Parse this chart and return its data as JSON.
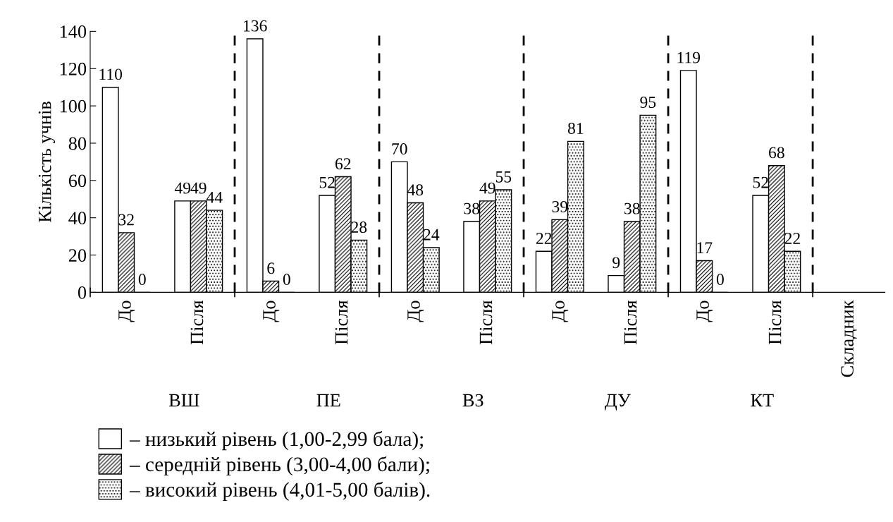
{
  "chart_data": {
    "type": "bar",
    "ylabel": "Кількість учнів",
    "categories": [
      "До",
      "Після",
      "До",
      "Після",
      "До",
      "Після",
      "До",
      "Після",
      "До",
      "Після",
      "Складник"
    ],
    "series": [
      {
        "name": "– низький рівень (1,00-2,99 бала);",
        "color": "#ffffff",
        "values": [
          110,
          49,
          136,
          52,
          70,
          38,
          22,
          9,
          119,
          52,
          null
        ]
      },
      {
        "name": "– середній рівень (3,00-4,00 бали);",
        "color": "#000000",
        "values": [
          32,
          49,
          6,
          62,
          48,
          49,
          39,
          38,
          17,
          68,
          null
        ]
      },
      {
        "name": "– високий рівень (4,01-5,00 балів).",
        "color": "#000000",
        "values": [
          0,
          44,
          0,
          28,
          24,
          55,
          81,
          95,
          0,
          22,
          null
        ]
      }
    ],
    "annotations": [
      "ВШ",
      "ПЕ",
      "ВЗ",
      "ДУ",
      "КТ"
    ],
    "ylim": [
      0,
      140
    ],
    "yticks": [
      0,
      20,
      40,
      60,
      80,
      100,
      120,
      140
    ],
    "data_labels": true,
    "grid": false,
    "legend": "bottom"
  }
}
